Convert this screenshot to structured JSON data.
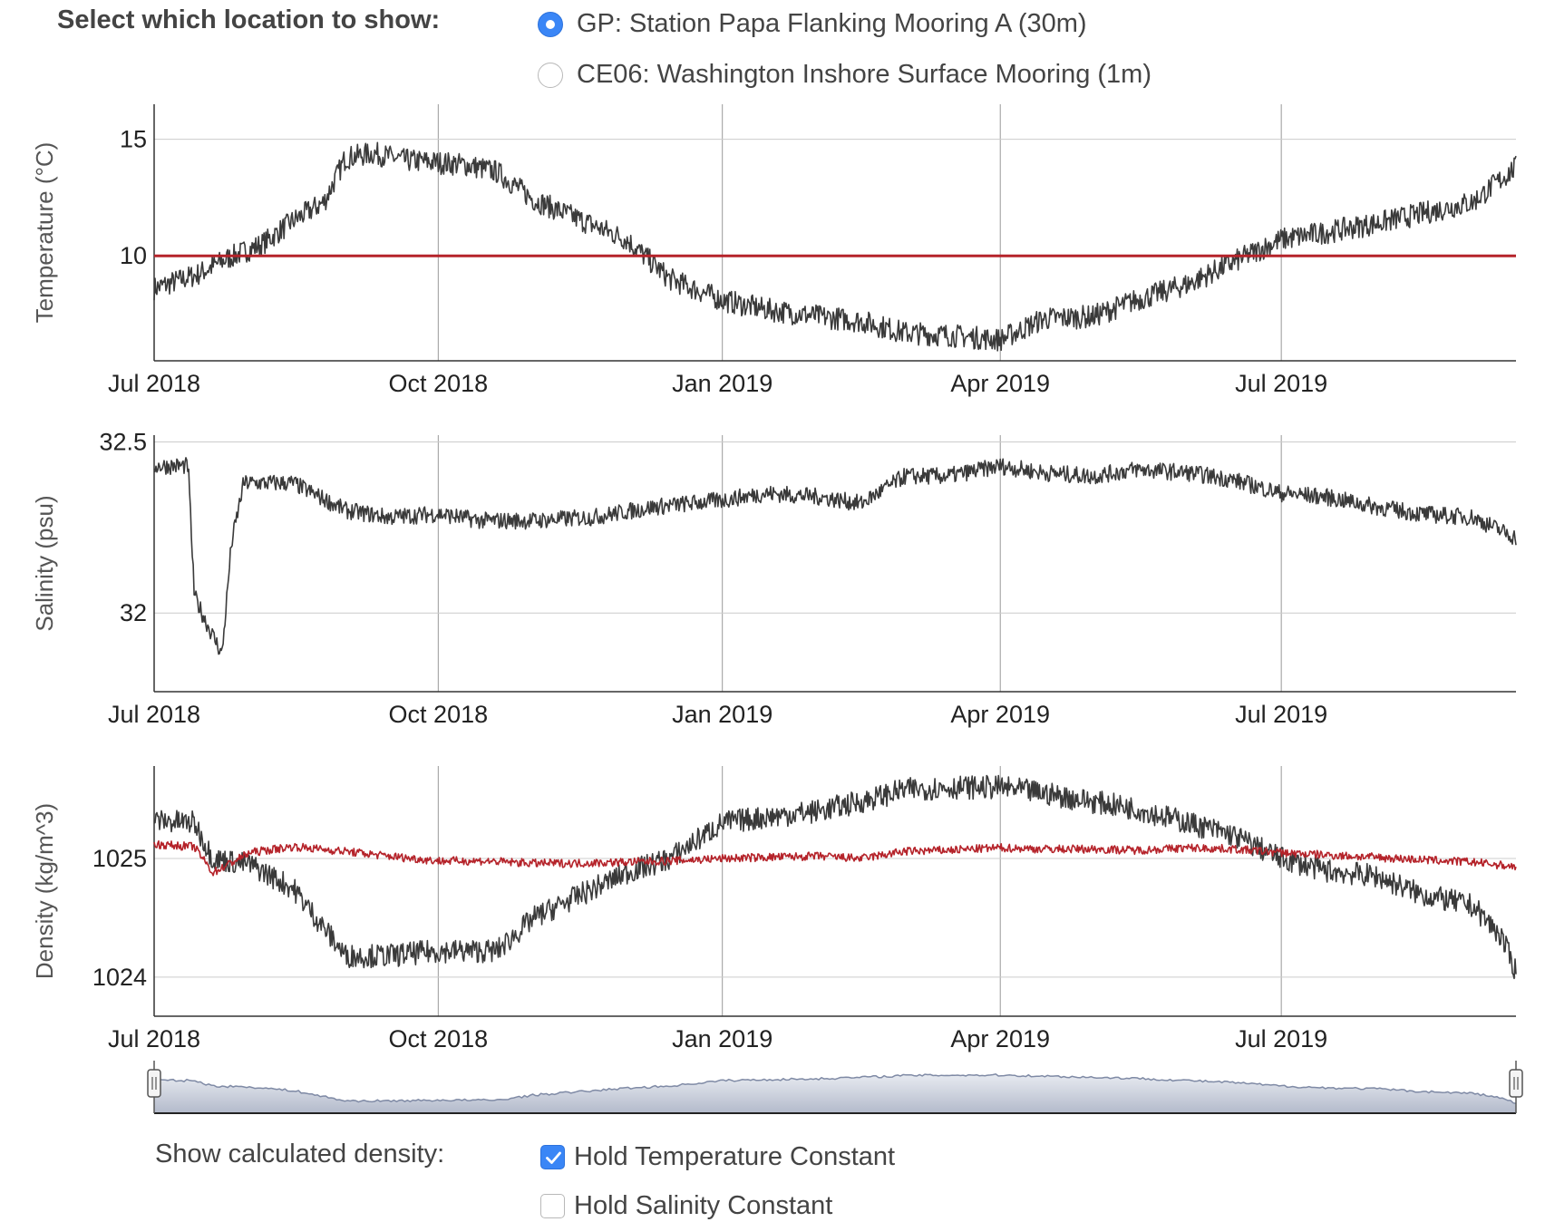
{
  "controls": {
    "location_heading": "Select which location to show:",
    "locations": [
      {
        "label": "GP: Station Papa Flanking Mooring A (30m)",
        "selected": true
      },
      {
        "label": "CE06: Washington Inshore Surface Mooring (1m)",
        "selected": false
      }
    ],
    "density_heading": "Show calculated density:",
    "density_options": [
      {
        "label": "Hold Temperature Constant",
        "checked": true
      },
      {
        "label": "Hold Salinity Constant",
        "checked": false
      }
    ]
  },
  "colors": {
    "observed": "#3a3a3a",
    "calculated": "#b5232a",
    "grid": "#cccccc",
    "axis": "#333333",
    "navigator_fill_top": "#e8ebf1",
    "navigator_fill_bottom": "#b3bacb",
    "navigator_line": "#7f8aa5",
    "control_accent": "#3a86f6"
  },
  "chart_data": [
    {
      "type": "line",
      "ylabel": "Temperature (°C)",
      "x_ticks": [
        "Jul 2018",
        "Oct 2018",
        "Jan 2019",
        "Apr 2019",
        "Jul 2019"
      ],
      "x_tick_dates": [
        "2018-07-01",
        "2018-10-01",
        "2019-01-01",
        "2019-04-01",
        "2019-07-01"
      ],
      "x_range": [
        "2018-07-01",
        "2019-09-15"
      ],
      "y_ticks": [
        10,
        15
      ],
      "ylim": [
        5.5,
        16.5
      ],
      "grid": true,
      "series": [
        {
          "role": "observed",
          "noise": 0.5,
          "x": [
            "2018-07-01",
            "2018-07-15",
            "2018-07-25",
            "2018-08-05",
            "2018-08-15",
            "2018-08-25",
            "2018-09-01",
            "2018-09-10",
            "2018-09-20",
            "2018-10-01",
            "2018-10-10",
            "2018-10-20",
            "2018-11-01",
            "2018-11-15",
            "2018-12-01",
            "2018-12-15",
            "2019-01-01",
            "2019-01-15",
            "2019-02-01",
            "2019-02-15",
            "2019-03-01",
            "2019-03-15",
            "2019-04-01",
            "2019-04-15",
            "2019-05-01",
            "2019-05-15",
            "2019-06-01",
            "2019-06-15",
            "2019-07-01",
            "2019-07-15",
            "2019-08-01",
            "2019-08-15",
            "2019-09-01",
            "2019-09-15"
          ],
          "y": [
            8.6,
            9.2,
            9.9,
            10.5,
            11.5,
            12.3,
            14.2,
            14.4,
            14.1,
            14.0,
            13.9,
            13.6,
            12.4,
            11.6,
            10.7,
            9.0,
            8.1,
            7.7,
            7.4,
            7.2,
            6.7,
            6.6,
            6.4,
            7.3,
            7.4,
            8.1,
            8.8,
            9.7,
            10.7,
            11.0,
            11.4,
            11.8,
            12.3,
            13.8
          ]
        },
        {
          "role": "reference",
          "x": [
            "2018-07-01",
            "2019-09-15"
          ],
          "y": [
            10,
            10
          ]
        }
      ]
    },
    {
      "type": "line",
      "ylabel": "Salinity (psu)",
      "x_ticks": [
        "Jul 2018",
        "Oct 2018",
        "Jan 2019",
        "Apr 2019",
        "Jul 2019"
      ],
      "x_tick_dates": [
        "2018-07-01",
        "2018-10-01",
        "2019-01-01",
        "2019-04-01",
        "2019-07-01"
      ],
      "x_range": [
        "2018-07-01",
        "2019-09-15"
      ],
      "y_ticks": [
        32,
        32.5
      ],
      "ylim": [
        31.77,
        32.52
      ],
      "grid": true,
      "series": [
        {
          "role": "observed",
          "noise": 0.025,
          "x": [
            "2018-07-01",
            "2018-07-12",
            "2018-07-14",
            "2018-07-18",
            "2018-07-23",
            "2018-07-26",
            "2018-07-30",
            "2018-08-15",
            "2018-09-01",
            "2018-09-15",
            "2018-10-01",
            "2018-10-15",
            "2018-11-01",
            "2018-11-20",
            "2018-12-10",
            "2019-01-01",
            "2019-01-15",
            "2019-02-01",
            "2019-02-15",
            "2019-03-01",
            "2019-03-15",
            "2019-04-01",
            "2019-04-15",
            "2019-05-01",
            "2019-05-15",
            "2019-06-01",
            "2019-06-15",
            "2019-07-01",
            "2019-07-15",
            "2019-08-01",
            "2019-08-15",
            "2019-09-01",
            "2019-09-15"
          ],
          "y": [
            32.43,
            32.43,
            32.05,
            31.97,
            31.88,
            32.2,
            32.38,
            32.38,
            32.3,
            32.28,
            32.29,
            32.27,
            32.27,
            32.28,
            32.31,
            32.33,
            32.35,
            32.34,
            32.32,
            32.4,
            32.4,
            32.43,
            32.41,
            32.4,
            32.42,
            32.41,
            32.39,
            32.35,
            32.34,
            32.31,
            32.29,
            32.28,
            32.22
          ]
        }
      ]
    },
    {
      "type": "line",
      "ylabel": "Density (kg/m^3)",
      "x_ticks": [
        "Jul 2018",
        "Oct 2018",
        "Jan 2019",
        "Apr 2019",
        "Jul 2019"
      ],
      "x_tick_dates": [
        "2018-07-01",
        "2018-10-01",
        "2019-01-01",
        "2019-04-01",
        "2019-07-01"
      ],
      "x_range": [
        "2018-07-01",
        "2019-09-15"
      ],
      "y_ticks": [
        1024,
        1025
      ],
      "ylim": [
        1023.67,
        1025.78
      ],
      "grid": true,
      "series": [
        {
          "role": "observed",
          "noise": 0.1,
          "x": [
            "2018-07-01",
            "2018-07-14",
            "2018-07-20",
            "2018-08-01",
            "2018-08-15",
            "2018-09-01",
            "2018-09-15",
            "2018-10-01",
            "2018-10-20",
            "2018-11-01",
            "2018-11-15",
            "2018-12-01",
            "2018-12-15",
            "2019-01-01",
            "2019-01-15",
            "2019-02-01",
            "2019-02-15",
            "2019-03-01",
            "2019-03-15",
            "2019-04-01",
            "2019-04-15",
            "2019-05-01",
            "2019-05-15",
            "2019-06-01",
            "2019-06-15",
            "2019-07-01",
            "2019-07-15",
            "2019-08-01",
            "2019-08-15",
            "2019-09-01",
            "2019-09-10",
            "2019-09-15"
          ],
          "y": [
            1025.32,
            1025.3,
            1025.0,
            1024.95,
            1024.75,
            1024.18,
            1024.18,
            1024.22,
            1024.22,
            1024.5,
            1024.68,
            1024.88,
            1025.0,
            1025.3,
            1025.35,
            1025.4,
            1025.48,
            1025.58,
            1025.6,
            1025.6,
            1025.55,
            1025.48,
            1025.42,
            1025.3,
            1025.2,
            1025.0,
            1024.9,
            1024.85,
            1024.7,
            1024.6,
            1024.35,
            1024.05
          ]
        },
        {
          "role": "calculated",
          "noise": 0.035,
          "x": [
            "2018-07-01",
            "2018-07-14",
            "2018-07-20",
            "2018-08-01",
            "2018-08-15",
            "2018-09-01",
            "2018-09-15",
            "2018-10-01",
            "2018-10-15",
            "2018-11-01",
            "2018-11-15",
            "2018-12-01",
            "2018-12-15",
            "2019-01-01",
            "2019-01-15",
            "2019-02-01",
            "2019-02-15",
            "2019-03-01",
            "2019-03-15",
            "2019-04-01",
            "2019-04-15",
            "2019-05-01",
            "2019-05-15",
            "2019-06-01",
            "2019-06-15",
            "2019-07-01",
            "2019-07-15",
            "2019-08-01",
            "2019-08-15",
            "2019-09-01",
            "2019-09-15"
          ],
          "y": [
            1025.12,
            1025.1,
            1024.88,
            1025.05,
            1025.1,
            1025.06,
            1025.02,
            1024.98,
            1024.98,
            1024.96,
            1024.96,
            1024.97,
            1024.98,
            1025.0,
            1025.01,
            1025.02,
            1025.0,
            1025.06,
            1025.07,
            1025.09,
            1025.08,
            1025.08,
            1025.07,
            1025.09,
            1025.08,
            1025.05,
            1025.03,
            1025.01,
            1024.99,
            1024.97,
            1024.93
          ]
        }
      ]
    },
    {
      "type": "area",
      "role": "range-navigator",
      "x": [
        "2018-07-01",
        "2018-07-14",
        "2018-07-20",
        "2018-08-01",
        "2018-08-15",
        "2018-09-01",
        "2018-09-15",
        "2018-10-01",
        "2018-10-20",
        "2018-11-01",
        "2018-11-15",
        "2018-12-01",
        "2018-12-15",
        "2019-01-01",
        "2019-01-15",
        "2019-02-01",
        "2019-02-15",
        "2019-03-01",
        "2019-03-15",
        "2019-04-01",
        "2019-04-15",
        "2019-05-01",
        "2019-05-15",
        "2019-06-01",
        "2019-06-15",
        "2019-07-01",
        "2019-07-15",
        "2019-08-01",
        "2019-08-15",
        "2019-09-01",
        "2019-09-10",
        "2019-09-15"
      ],
      "y": [
        1025.32,
        1025.3,
        1025.0,
        1024.95,
        1024.75,
        1024.18,
        1024.18,
        1024.22,
        1024.22,
        1024.5,
        1024.68,
        1024.88,
        1025.0,
        1025.3,
        1025.35,
        1025.4,
        1025.48,
        1025.58,
        1025.6,
        1025.6,
        1025.55,
        1025.48,
        1025.42,
        1025.3,
        1025.2,
        1025.0,
        1024.9,
        1024.85,
        1024.7,
        1024.6,
        1024.35,
        1024.05
      ],
      "ylim": [
        1023.5,
        1026.0
      ],
      "selection": [
        "2018-07-01",
        "2019-09-15"
      ]
    }
  ]
}
